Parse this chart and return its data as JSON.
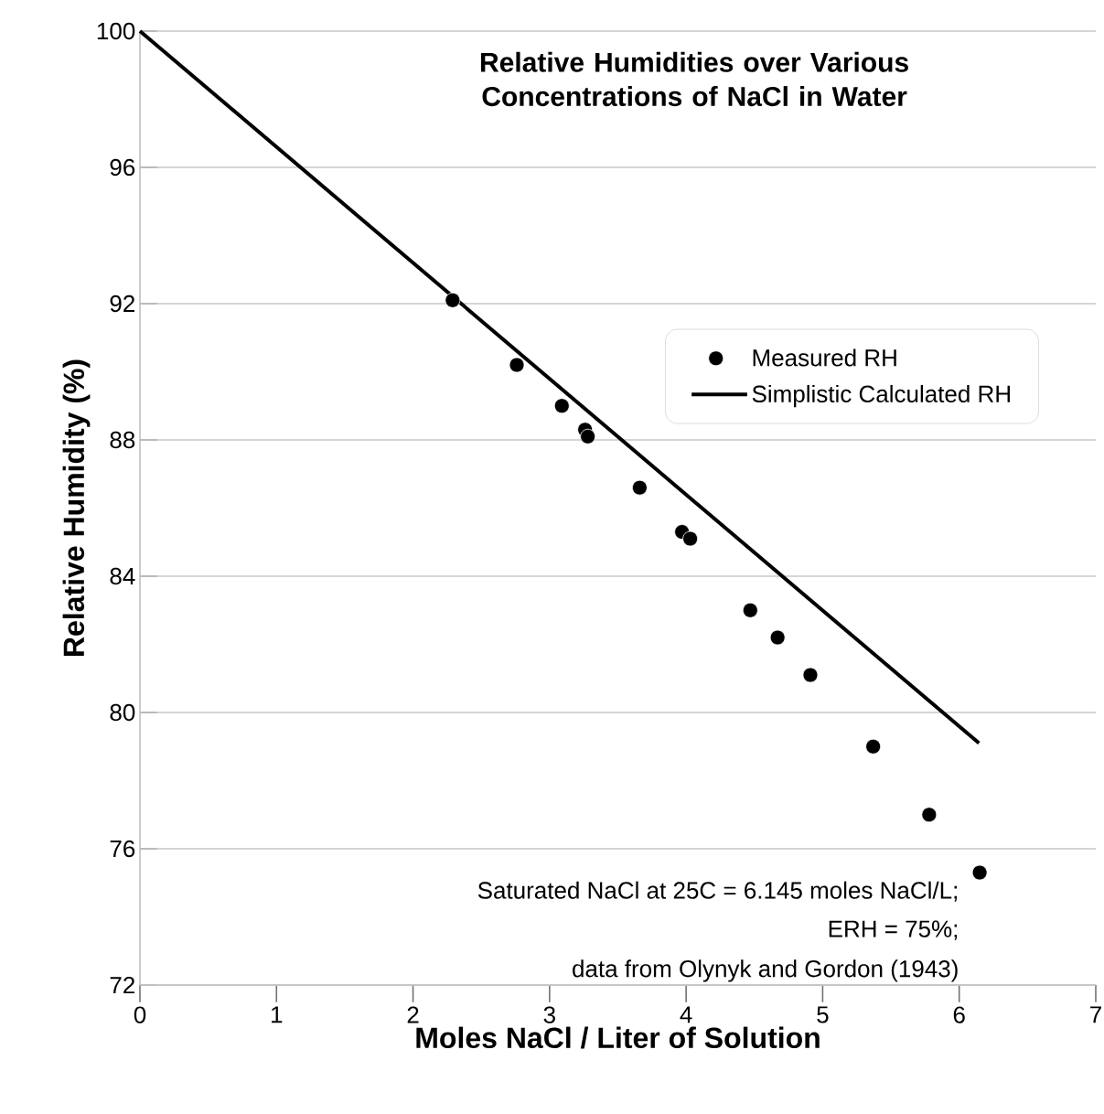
{
  "chart_data": {
    "type": "scatter",
    "title": "Relative Humidities over Various Concentrations of NaCl in Water",
    "xlabel": "Moles NaCl / Liter of Solution",
    "ylabel": "Relative Humidity (%)",
    "xlim": [
      0,
      7
    ],
    "ylim": [
      72,
      100
    ],
    "xticks": [
      0,
      1,
      2,
      3,
      4,
      5,
      6,
      7
    ],
    "yticks": [
      72,
      76,
      80,
      84,
      88,
      92,
      96,
      100
    ],
    "grid": "y",
    "legend": "right",
    "series": [
      {
        "name": "Measured RH",
        "color": "#000000",
        "marker": "circle",
        "x": [
          2.29,
          2.76,
          3.09,
          3.26,
          3.28,
          3.66,
          3.97,
          4.03,
          4.47,
          4.67,
          4.91,
          5.37,
          5.78,
          6.15
        ],
        "values": [
          92.1,
          90.2,
          89.0,
          88.3,
          88.1,
          86.6,
          85.3,
          85.1,
          83.0,
          82.2,
          81.1,
          79.0,
          77.0,
          75.3
        ]
      },
      {
        "name": "Simplistic Calculated RH",
        "type": "line",
        "color": "#000000",
        "marker": "none",
        "line_style": "solid",
        "x": [
          0,
          6.145
        ],
        "values": [
          100,
          79.1
        ]
      }
    ],
    "annotations": [
      "Saturated NaCl at 25C = 6.145 moles NaCl/L;",
      "ERH = 75%;",
      "data from Olynyk and Gordon (1943)"
    ]
  }
}
